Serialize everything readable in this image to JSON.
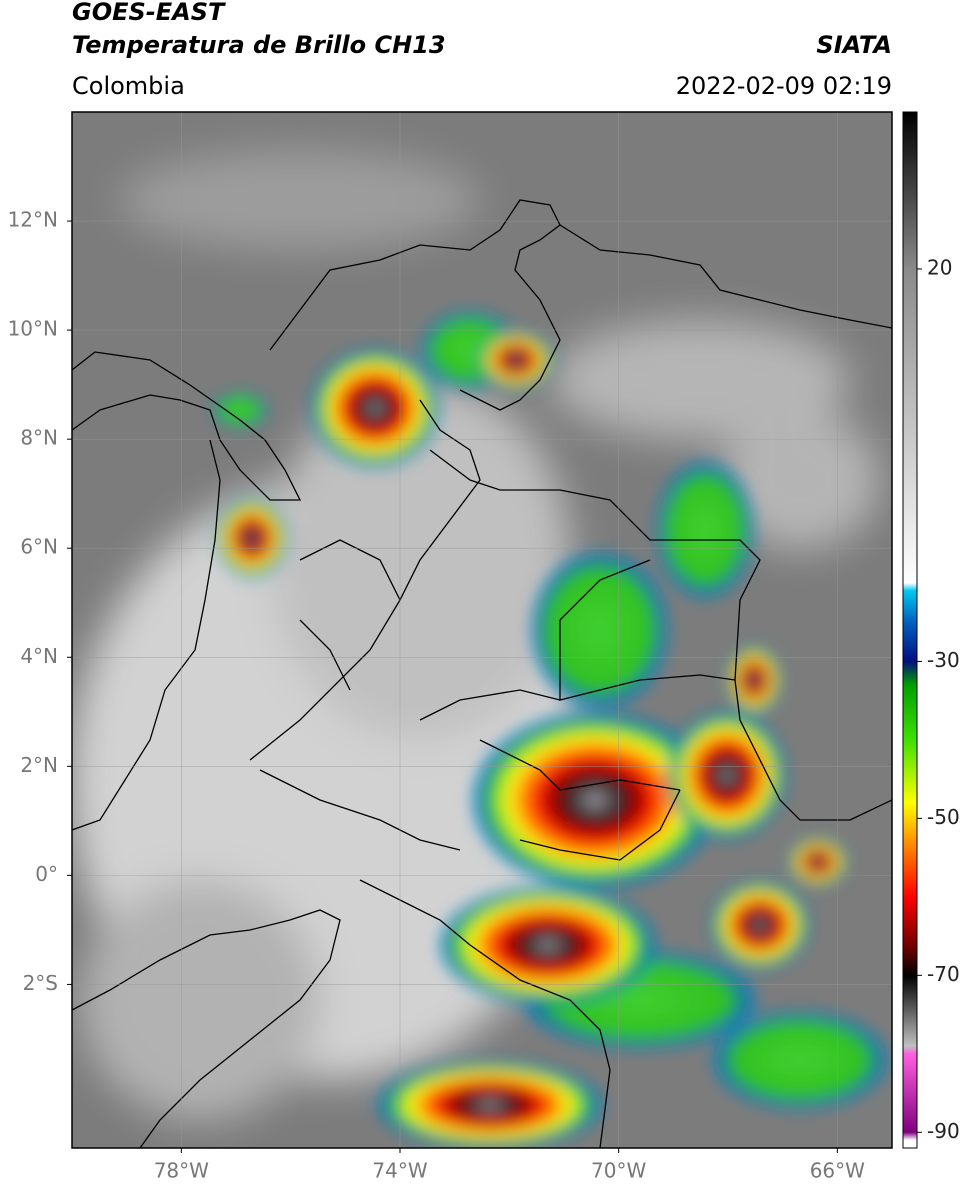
{
  "header": {
    "title": "GOES-EAST",
    "subtitle": "Temperatura de Brillo CH13",
    "source": "SIATA",
    "region": "Colombia",
    "datetime": "2022-02-09 02:19"
  },
  "map": {
    "xlim": [
      -80,
      -65
    ],
    "ylim": [
      -5,
      14
    ],
    "xticks": [
      {
        "value": -78,
        "label": "78°W"
      },
      {
        "value": -74,
        "label": "74°W"
      },
      {
        "value": -70,
        "label": "70°W"
      },
      {
        "value": -66,
        "label": "66°W"
      }
    ],
    "yticks": [
      {
        "value": 12,
        "label": "12°N"
      },
      {
        "value": 10,
        "label": "10°N"
      },
      {
        "value": 8,
        "label": "8°N"
      },
      {
        "value": 6,
        "label": "6°N"
      },
      {
        "value": 4,
        "label": "4°N"
      },
      {
        "value": 2,
        "label": "2°N"
      },
      {
        "value": 0,
        "label": "0°"
      },
      {
        "value": -2,
        "label": "2°S"
      }
    ],
    "grid": true
  },
  "colorbar": {
    "lim": [
      -92,
      40
    ],
    "ticks": [
      20,
      -30,
      -50,
      -70,
      -90
    ],
    "colormap": [
      {
        "value": 40,
        "color": "#000000"
      },
      {
        "value": 30,
        "color": "#444444"
      },
      {
        "value": 20,
        "color": "#8a8a8a"
      },
      {
        "value": -20,
        "color": "#ffffff"
      },
      {
        "value": -21,
        "color": "#00c8f0"
      },
      {
        "value": -25,
        "color": "#0060c0"
      },
      {
        "value": -30,
        "color": "#001080"
      },
      {
        "value": -33,
        "color": "#00a000"
      },
      {
        "value": -40,
        "color": "#40e000"
      },
      {
        "value": -48,
        "color": "#ffff00"
      },
      {
        "value": -53,
        "color": "#ff9000"
      },
      {
        "value": -60,
        "color": "#ff0000"
      },
      {
        "value": -67,
        "color": "#600000"
      },
      {
        "value": -70,
        "color": "#000000"
      },
      {
        "value": -79,
        "color": "#c0c0c0"
      },
      {
        "value": -80,
        "color": "#ff60e0"
      },
      {
        "value": -90,
        "color": "#800080"
      },
      {
        "value": -91,
        "color": "#ffffff"
      }
    ]
  }
}
